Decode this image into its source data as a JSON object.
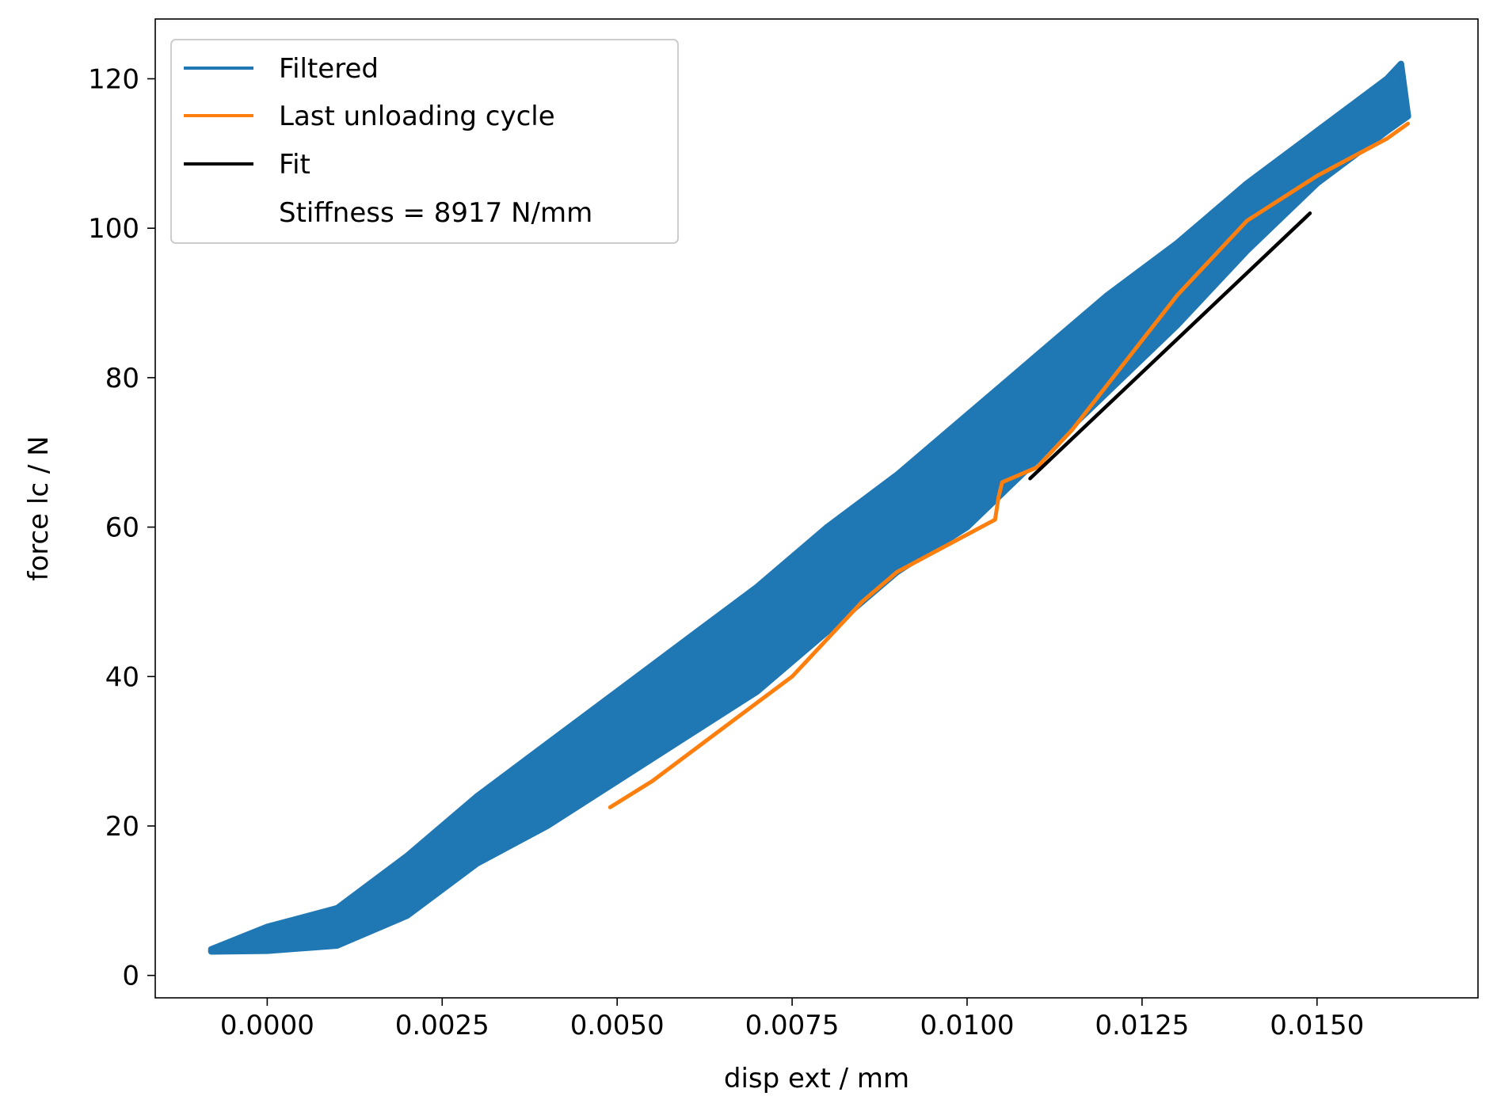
{
  "chart_data": {
    "type": "line",
    "title": "",
    "xlabel": "disp ext / mm",
    "ylabel": "force lc / N",
    "xlim": [
      -0.0016,
      0.0173
    ],
    "ylim": [
      -3,
      128
    ],
    "x_ticks": [
      0.0,
      0.0025,
      0.005,
      0.0075,
      0.01,
      0.0125,
      0.015
    ],
    "x_tick_labels": [
      "0.0000",
      "0.0025",
      "0.0050",
      "0.0075",
      "0.0100",
      "0.0125",
      "0.0150"
    ],
    "y_ticks": [
      0,
      20,
      40,
      60,
      80,
      100,
      120
    ],
    "y_tick_labels": [
      "0",
      "20",
      "40",
      "60",
      "80",
      "100",
      "120"
    ],
    "grid": false,
    "legend_placement": "top-left",
    "legend": {
      "filtered": "Filtered",
      "unloading": "Last unloading cycle",
      "fit": "Fit",
      "stiffness": "Stiffness = 8917 N/mm"
    },
    "colors": {
      "filtered": "#1f77b4",
      "unloading": "#ff7f0e",
      "fit": "#000000"
    },
    "series": [
      {
        "name": "Filtered",
        "band_upper": [
          [
            -0.0008,
            3.5
          ],
          [
            0.0,
            6.5
          ],
          [
            0.001,
            9
          ],
          [
            0.002,
            16
          ],
          [
            0.003,
            24
          ],
          [
            0.004,
            31
          ],
          [
            0.005,
            38
          ],
          [
            0.006,
            45
          ],
          [
            0.007,
            52
          ],
          [
            0.008,
            60
          ],
          [
            0.009,
            67
          ],
          [
            0.01,
            75
          ],
          [
            0.011,
            83
          ],
          [
            0.012,
            91
          ],
          [
            0.013,
            98
          ],
          [
            0.014,
            106
          ],
          [
            0.015,
            113
          ],
          [
            0.016,
            120
          ],
          [
            0.0162,
            122
          ]
        ],
        "band_lower": [
          [
            -0.0008,
            3.2
          ],
          [
            0.0,
            3.3
          ],
          [
            0.001,
            4
          ],
          [
            0.002,
            8
          ],
          [
            0.003,
            15
          ],
          [
            0.004,
            20
          ],
          [
            0.005,
            26
          ],
          [
            0.006,
            32
          ],
          [
            0.007,
            38
          ],
          [
            0.008,
            46
          ],
          [
            0.009,
            54
          ],
          [
            0.01,
            60
          ],
          [
            0.011,
            69
          ],
          [
            0.012,
            78
          ],
          [
            0.013,
            87
          ],
          [
            0.014,
            97
          ],
          [
            0.015,
            106
          ],
          [
            0.016,
            113
          ],
          [
            0.0163,
            115
          ]
        ]
      },
      {
        "name": "Last unloading cycle",
        "points": [
          [
            0.0049,
            22.5
          ],
          [
            0.0055,
            26
          ],
          [
            0.006,
            29.5
          ],
          [
            0.0065,
            33
          ],
          [
            0.007,
            36.5
          ],
          [
            0.0075,
            40
          ],
          [
            0.008,
            45
          ],
          [
            0.0085,
            50
          ],
          [
            0.009,
            54
          ],
          [
            0.0095,
            56.5
          ],
          [
            0.01,
            59
          ],
          [
            0.0104,
            61
          ],
          [
            0.01045,
            64
          ],
          [
            0.0105,
            66
          ],
          [
            0.011,
            68
          ],
          [
            0.0115,
            73
          ],
          [
            0.012,
            79
          ],
          [
            0.0125,
            85
          ],
          [
            0.013,
            91
          ],
          [
            0.0135,
            96
          ],
          [
            0.014,
            101
          ],
          [
            0.0145,
            104
          ],
          [
            0.015,
            107
          ],
          [
            0.0155,
            109.5
          ],
          [
            0.016,
            112
          ],
          [
            0.0163,
            114
          ]
        ]
      },
      {
        "name": "Fit",
        "points": [
          [
            0.0109,
            66.5
          ],
          [
            0.0149,
            102
          ]
        ]
      }
    ]
  }
}
